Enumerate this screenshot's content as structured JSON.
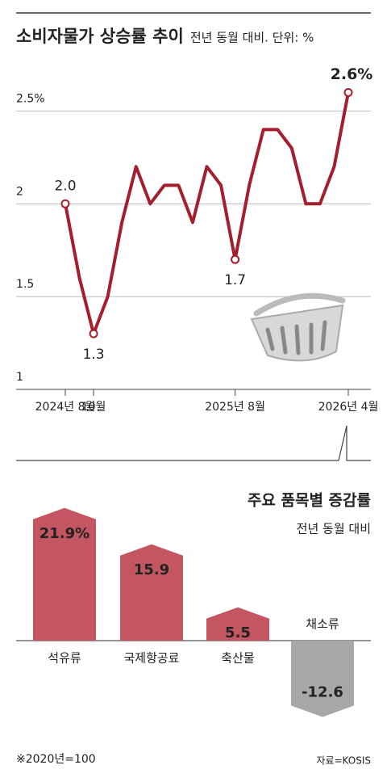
{
  "chart_data": [
    {
      "type": "line",
      "title": "소비자물가 상승률 추이",
      "subtitle": "전년 동월 대비. 단위: %",
      "categories": [
        "2024년 8월",
        null,
        "10월",
        null,
        null,
        null,
        null,
        null,
        null,
        null,
        null,
        null,
        "2025년 8월",
        null,
        null,
        null,
        null,
        null,
        null,
        null,
        "2026년 4월"
      ],
      "values": [
        2.0,
        1.6,
        1.3,
        1.5,
        1.9,
        2.2,
        2.0,
        2.1,
        2.1,
        1.9,
        2.2,
        2.1,
        1.7,
        2.1,
        2.4,
        2.4,
        2.3,
        2.0,
        2.0,
        2.2,
        2.6
      ],
      "value_labels": [
        "2.0",
        null,
        "1.3",
        null,
        null,
        null,
        null,
        null,
        null,
        null,
        null,
        null,
        "1.7",
        null,
        null,
        null,
        null,
        null,
        null,
        null,
        "2.6%"
      ],
      "color": "#a51e2e",
      "ylim": [
        1,
        2.75
      ],
      "yticks": [
        1,
        1.5,
        2,
        {
          "value": 2.5,
          "label": "2.5%"
        }
      ],
      "grid": true
    },
    {
      "type": "bar",
      "title": "주요 품목별 증감률",
      "subtitle": "전년 동월 대비",
      "categories": [
        "석유류",
        "국제항공료",
        "축산물",
        "채소류"
      ],
      "values": [
        21.9,
        15.9,
        5.5,
        -12.6
      ],
      "value_labels": [
        "21.9%",
        "15.9",
        "5.5",
        "-12.6"
      ],
      "colors": {
        "positive": "#c45662",
        "negative": "#a7a7a7"
      }
    }
  ],
  "note": "※2020년=100",
  "source": "자료=KOSIS"
}
